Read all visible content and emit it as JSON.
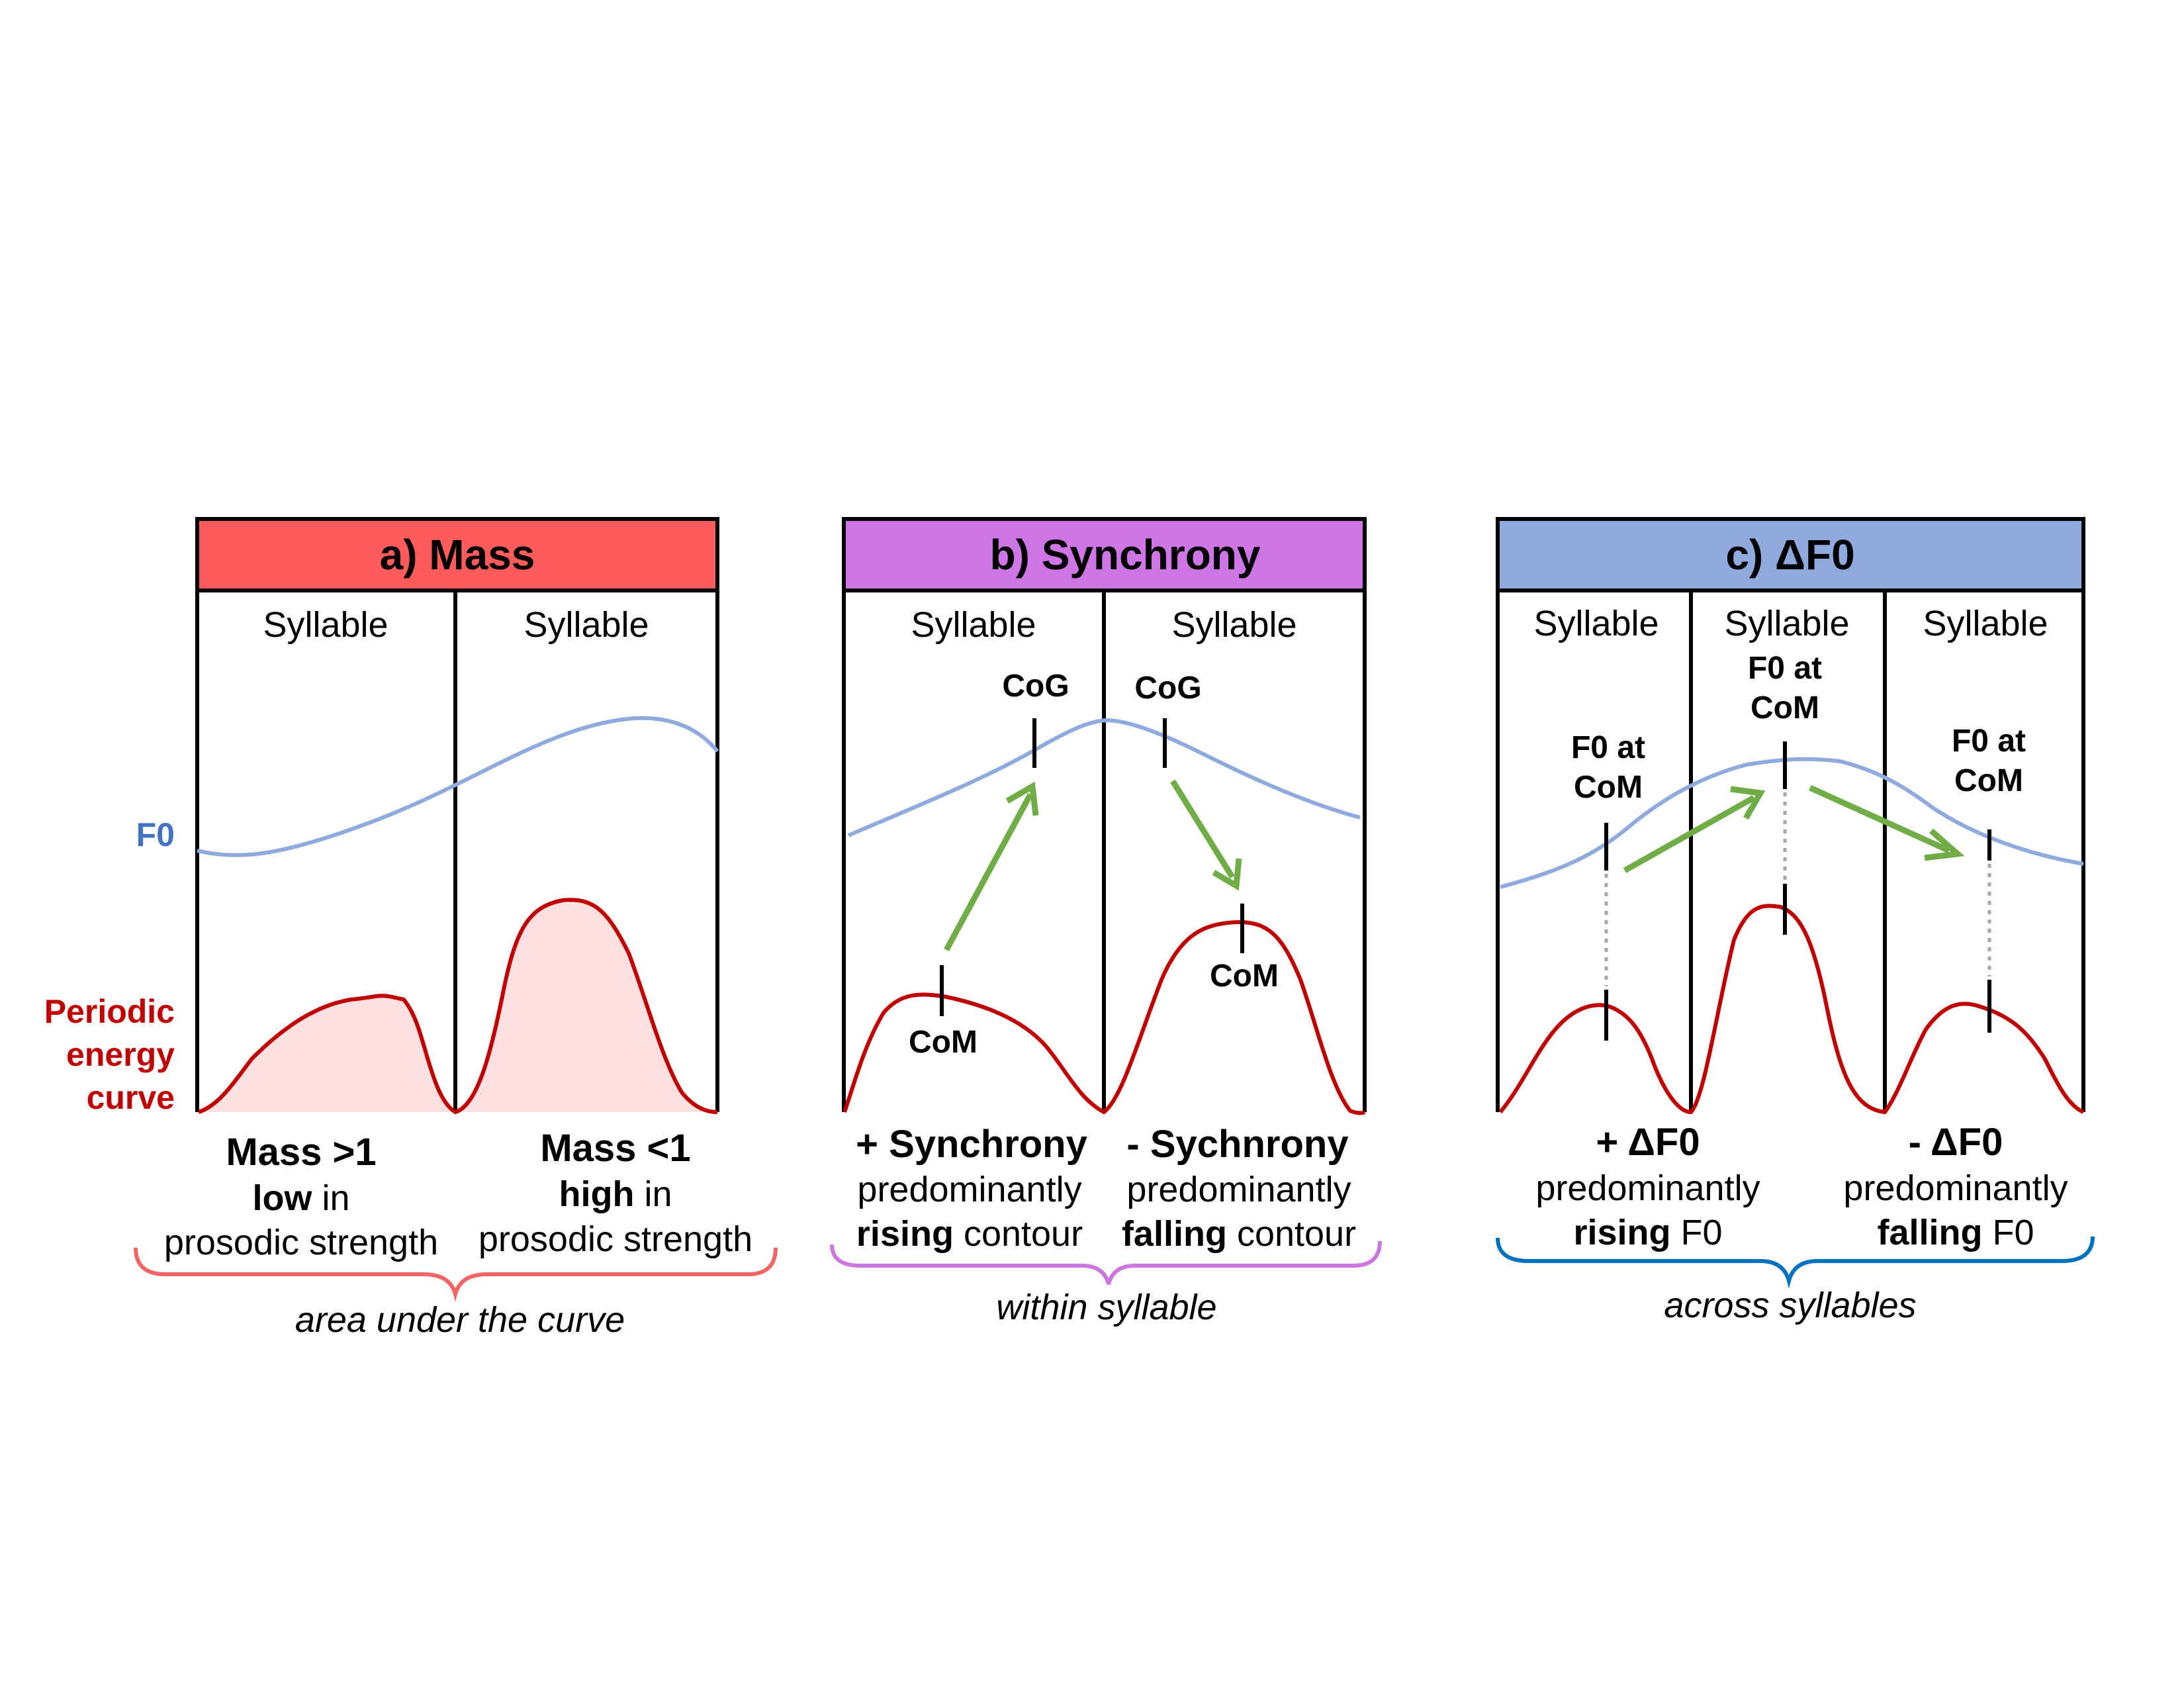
{
  "colors": {
    "mass": "#ff5b5b",
    "synchrony": "#cf76e6",
    "df0": "#8faadc",
    "f0_line": "#8faadc",
    "energy_line": "#c00000",
    "energy_fill": "#fde0e0",
    "arrow": "#70ad47",
    "brace_mass": "#f36464",
    "brace_synchrony": "#cc77dd",
    "brace_df0": "#0070c0"
  },
  "side_labels": {
    "f0": "F0",
    "energy_line1": "Periodic",
    "energy_line2": "energy",
    "energy_line3": "curve"
  },
  "panel_a": {
    "title": "a)  Mass",
    "syllable_left": "Syllable",
    "syllable_right": "Syllable",
    "left": {
      "headline": "Mass  >1",
      "line2_bold": "low",
      "line2_rest": " in",
      "line3": "prosodic  strength"
    },
    "right": {
      "headline": "Mass  <1",
      "line2_bold": "high",
      "line2_rest": " in",
      "line3": "prosodic  strength"
    },
    "brace_label": "area  under  the  curve"
  },
  "panel_b": {
    "title": "b)  Synchrony",
    "syllable_left": "Syllable",
    "syllable_right": "Syllable",
    "cog_left": "CoG",
    "cog_right": "CoG",
    "com_left": "CoM",
    "com_right": "CoM",
    "left": {
      "headline": "+  Synchrony",
      "line2": "predominantly",
      "line3_bold": "rising",
      "line3_rest": "  contour"
    },
    "right": {
      "headline": "-  Sychnrony",
      "line2": "predominantly",
      "line3_bold": "falling",
      "line3_rest": "  contour"
    },
    "brace_label": "within  syllable"
  },
  "panel_c": {
    "title": "c)  ΔF0",
    "syllable_1": "Syllable",
    "syllable_2": "Syllable",
    "syllable_3": "Syllable",
    "f0_at_com_line1": "F0  at",
    "f0_at_com_line2": "CoM",
    "left": {
      "headline": "+  ΔF0",
      "line2": "predominantly",
      "line3_bold": "rising",
      "line3_rest": "  F0"
    },
    "right": {
      "headline": "-  ΔF0",
      "line2": "predominantly",
      "line3_bold": "falling",
      "line3_rest": "  F0"
    },
    "brace_label": "across  syllables"
  }
}
